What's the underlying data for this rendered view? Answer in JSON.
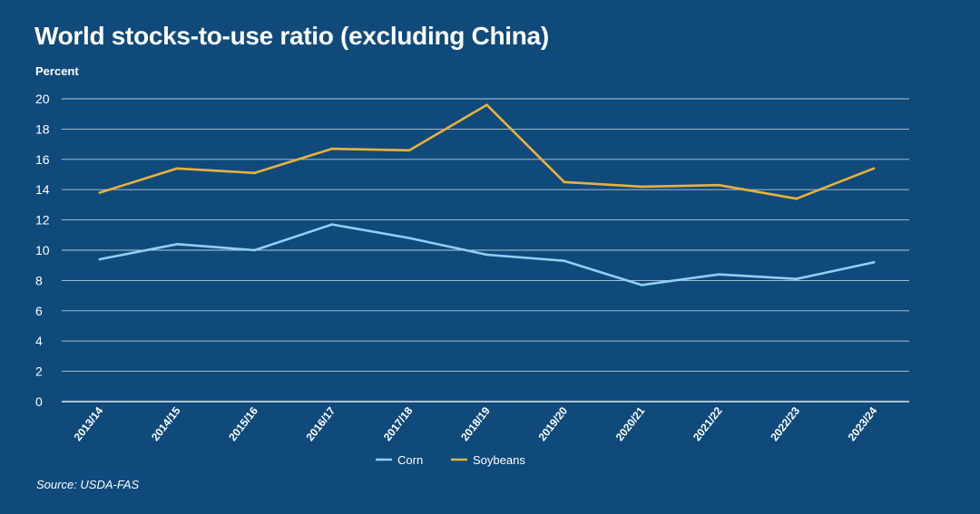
{
  "header": {
    "title": "World stocks-to-use ratio (excluding China)"
  },
  "footer": {
    "source": "Source: USDA-FAS"
  },
  "colors": {
    "background": "#0f4a7b",
    "grid": "#b9c8d6",
    "corn": "#8fd0f4",
    "soybeans": "#e8b23a"
  },
  "chart_data": {
    "type": "line",
    "title": "World stocks-to-use ratio (excluding China)",
    "xlabel": "",
    "ylabel": "Percent",
    "ylim": [
      0,
      20
    ],
    "yticks": [
      0,
      2,
      4,
      6,
      8,
      10,
      12,
      14,
      16,
      18,
      20
    ],
    "grid": true,
    "legend_position": "bottom-center",
    "categories": [
      "2013/14",
      "2014/15",
      "2015/16",
      "2016/17",
      "2017/18",
      "2018/19",
      "2019/20",
      "2020/21",
      "2021/22",
      "2022/23",
      "2023/24"
    ],
    "series": [
      {
        "name": "Corn",
        "color": "#8fd0f4",
        "values": [
          9.4,
          10.4,
          10.0,
          11.7,
          10.8,
          9.7,
          9.3,
          7.7,
          8.4,
          8.1,
          9.2
        ]
      },
      {
        "name": "Soybeans",
        "color": "#e8b23a",
        "values": [
          13.8,
          15.4,
          15.1,
          16.7,
          16.6,
          19.6,
          14.5,
          14.2,
          14.3,
          13.4,
          15.4
        ]
      }
    ]
  }
}
